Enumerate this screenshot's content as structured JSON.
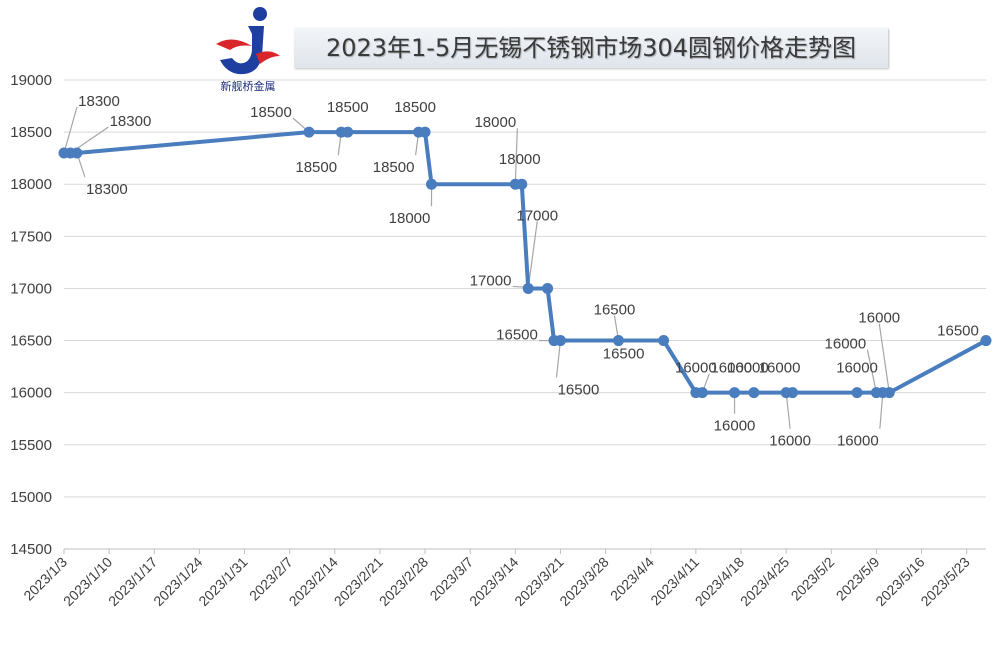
{
  "logo": {
    "caption": "新舰桥金属"
  },
  "colors": {
    "line": "#4a7dbe",
    "grid": "#d9d9d9",
    "leader": "#a6a6a6",
    "text": "#404040",
    "logo_blue": "#1f3fa0",
    "logo_red": "#d9262b"
  },
  "chart_data": {
    "type": "line",
    "title": "2023年1-5月无锡不锈钢市场304圆钢价格走势图",
    "xlabel": "",
    "ylabel": "",
    "ylim": [
      14500,
      19000
    ],
    "ytick_step": 500,
    "ytick_labels": [
      "14500",
      "15000",
      "15500",
      "16000",
      "16500",
      "17000",
      "17500",
      "18000",
      "18500",
      "19000"
    ],
    "xlim": [
      "2023/1/3",
      "2023/5/26"
    ],
    "xtick_labels": [
      "2023/1/3",
      "2023/1/10",
      "2023/1/17",
      "2023/1/24",
      "2023/1/31",
      "2023/2/7",
      "2023/2/14",
      "2023/2/21",
      "2023/2/28",
      "2023/3/7",
      "2023/3/14",
      "2023/3/21",
      "2023/3/28",
      "2023/4/4",
      "2023/4/11",
      "2023/4/18",
      "2023/4/25",
      "2023/5/2",
      "2023/5/9",
      "2023/5/16",
      "2023/5/23"
    ],
    "grid": true,
    "legend": "none",
    "series": [
      {
        "x": [
          "2023/1/3",
          "2023/1/4",
          "2023/1/5",
          "2023/2/10",
          "2023/2/15",
          "2023/2/16",
          "2023/2/27",
          "2023/2/28",
          "2023/3/1",
          "2023/3/14",
          "2023/3/15",
          "2023/3/16",
          "2023/3/19",
          "2023/3/20",
          "2023/3/21",
          "2023/3/30",
          "2023/4/6",
          "2023/4/11",
          "2023/4/12",
          "2023/4/17",
          "2023/4/20",
          "2023/4/25",
          "2023/4/26",
          "2023/5/6",
          "2023/5/9",
          "2023/5/10",
          "2023/5/11",
          "2023/5/26"
        ],
        "values": [
          18300,
          18300,
          18300,
          18500,
          18500,
          18500,
          18500,
          18500,
          18000,
          18000,
          18000,
          17000,
          17000,
          16500,
          16500,
          16500,
          16500,
          16000,
          16000,
          16000,
          16000,
          16000,
          16000,
          16000,
          16000,
          16000,
          16000,
          16500
        ],
        "data_labels": [
          "18300",
          "18300",
          "18300",
          "18500",
          "18500",
          "18500",
          "18500",
          "18500",
          "18000",
          "18000",
          "18000",
          "17000",
          "17000",
          "16500",
          "16500",
          "16500",
          "16500",
          "16000",
          "16000",
          "16000",
          "16000",
          "16000",
          "16000",
          "16000",
          "16000",
          "16000",
          "16000",
          "16500"
        ]
      }
    ]
  }
}
